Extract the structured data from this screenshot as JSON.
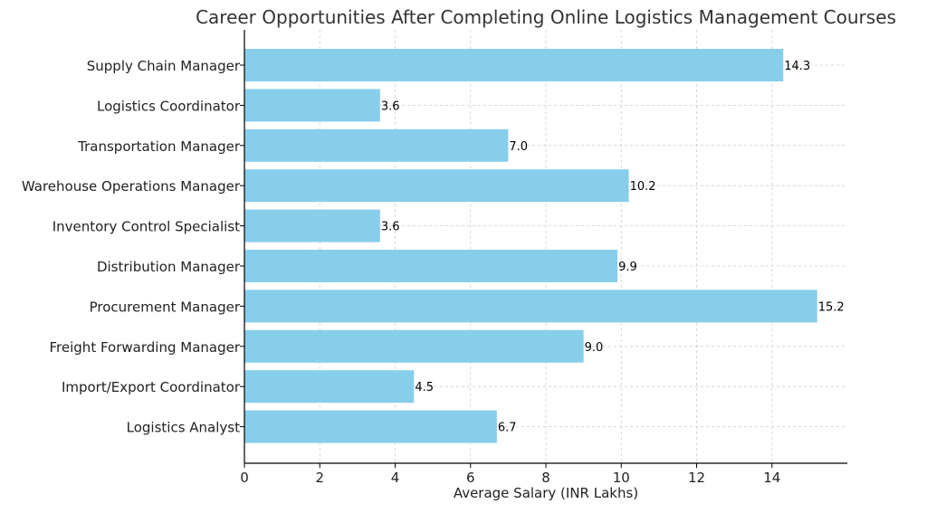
{
  "chart_data": {
    "type": "bar",
    "orientation": "horizontal",
    "title": "Career Opportunities After Completing Online Logistics Management Courses",
    "xlabel": "Average Salary (INR Lakhs)",
    "ylabel": "",
    "categories": [
      "Supply Chain Manager",
      "Logistics Coordinator",
      "Transportation Manager",
      "Warehouse Operations Manager",
      "Inventory Control Specialist",
      "Distribution Manager",
      "Procurement Manager",
      "Freight Forwarding Manager",
      "Import/Export Coordinator",
      "Logistics Analyst"
    ],
    "values": [
      14.3,
      3.6,
      7.0,
      10.2,
      3.6,
      9.9,
      15.2,
      9.0,
      4.5,
      6.7
    ],
    "data_labels": [
      "14.3",
      "3.6",
      "7.0",
      "10.2",
      "3.6",
      "9.9",
      "15.2",
      "9.0",
      "4.5",
      "6.7"
    ],
    "xlim": [
      0,
      16
    ],
    "xticks": [
      "0",
      "2",
      "4",
      "6",
      "8",
      "10",
      "12",
      "14"
    ],
    "grid": true,
    "bar_color": "#87CEEB"
  }
}
